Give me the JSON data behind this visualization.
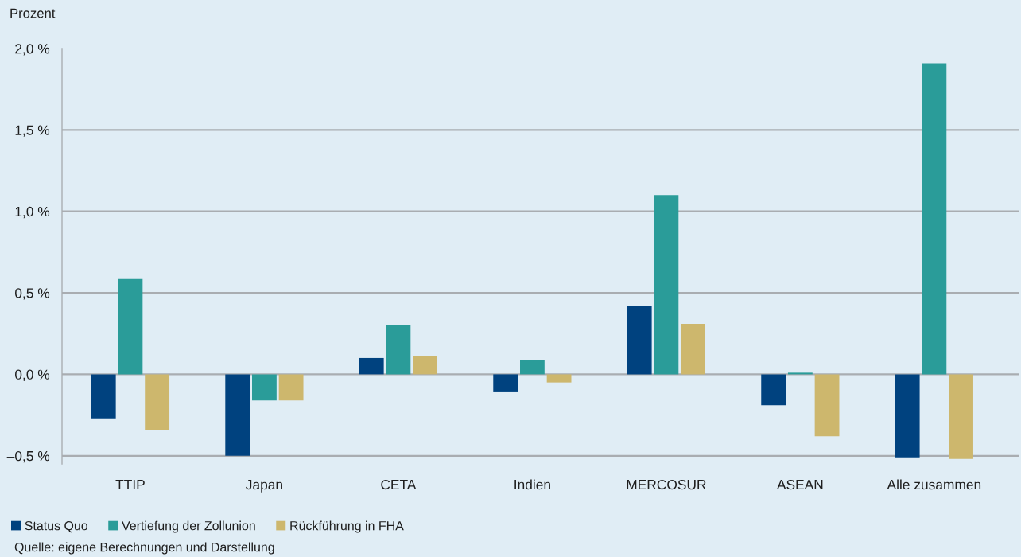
{
  "chart_data": {
    "type": "bar",
    "ylabel": "Prozent",
    "categories": [
      "TTIP",
      "Japan",
      "CETA",
      "Indien",
      "MERCOSUR",
      "ASEAN",
      "Alle zusammen"
    ],
    "series": [
      {
        "name": "Status Quo",
        "color": "#00427f",
        "values": [
          -0.27,
          -0.5,
          0.1,
          -0.11,
          0.42,
          -0.19,
          -0.51
        ]
      },
      {
        "name": "Vertiefung der Zollunion",
        "color": "#2a9c99",
        "values": [
          0.59,
          -0.16,
          0.3,
          0.09,
          1.1,
          0.01,
          1.91
        ]
      },
      {
        "name": "Rückführung in FHA",
        "color": "#cdb76d",
        "values": [
          -0.34,
          -0.16,
          0.11,
          -0.05,
          0.31,
          -0.38,
          -0.52
        ]
      }
    ],
    "ylim": [
      -0.55,
      2.0
    ],
    "yticks": [
      {
        "value": -0.5,
        "label": "–0,5 %"
      },
      {
        "value": 0.0,
        "label": "0,0 %"
      },
      {
        "value": 0.5,
        "label": "0,5 %"
      },
      {
        "value": 1.0,
        "label": "1,0 %"
      },
      {
        "value": 1.5,
        "label": "1,5 %"
      },
      {
        "value": 2.0,
        "label": "2,0 %"
      }
    ],
    "grid": "y",
    "legend": "bottom",
    "annotations": [
      "Quelle: eigene Berechnungen und Darstellung"
    ]
  }
}
